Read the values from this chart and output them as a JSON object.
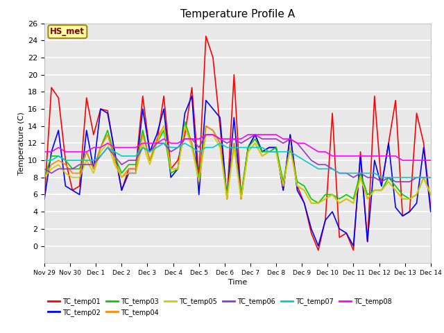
{
  "title": "Temperature Profile A",
  "xlabel": "Time",
  "ylabel": "Temperature (C)",
  "annotation": "HS_met",
  "ylim": [
    -2,
    26
  ],
  "yticks": [
    0,
    2,
    4,
    6,
    8,
    10,
    12,
    14,
    16,
    18,
    20,
    22,
    24,
    26
  ],
  "xtick_labels": [
    "Nov 29",
    "Nov 30",
    "Dec 1",
    "Dec 2",
    "Dec 3",
    "Dec 4",
    "Dec 5",
    "Dec 6",
    "Dec 7",
    "Dec 8",
    "Dec 9",
    "Dec 10",
    "Dec 11",
    "Dec 12",
    "Dec 13",
    "Dec 14"
  ],
  "background_color": "#e8e8e8",
  "fig_background": "#ffffff",
  "colors": {
    "TC_temp01": "#ff0000",
    "TC_temp02": "#0000ff",
    "TC_temp03": "#00cc00",
    "TC_temp04": "#ff8800",
    "TC_temp05": "#cccc00",
    "TC_temp06": "#9933cc",
    "TC_temp07": "#00cccc",
    "TC_temp08": "#ff00ff"
  },
  "series": {
    "TC_temp01": [
      5.5,
      18.5,
      17.3,
      10.0,
      6.5,
      7.0,
      17.3,
      13.0,
      16.0,
      15.8,
      11.0,
      6.5,
      9.0,
      9.0,
      17.5,
      11.0,
      12.0,
      17.5,
      9.0,
      10.0,
      13.0,
      18.5,
      8.0,
      24.5,
      22.0,
      14.0,
      5.5,
      20.0,
      5.5,
      11.5,
      13.0,
      11.0,
      11.5,
      11.5,
      6.5,
      13.0,
      7.0,
      5.0,
      1.5,
      -0.5,
      3.0,
      15.5,
      1.0,
      1.5,
      -0.5,
      11.0,
      0.5,
      17.5,
      7.0,
      12.0,
      17.0,
      3.5,
      4.0,
      15.5,
      12.0,
      4.5
    ],
    "TC_temp02": [
      5.5,
      11.0,
      13.5,
      7.0,
      6.5,
      6.0,
      13.5,
      9.0,
      16.0,
      15.5,
      11.0,
      6.5,
      8.5,
      8.5,
      16.0,
      11.0,
      13.0,
      16.0,
      8.0,
      9.0,
      15.5,
      17.5,
      6.0,
      17.0,
      16.0,
      15.0,
      5.5,
      15.0,
      5.5,
      11.5,
      13.0,
      11.0,
      11.5,
      11.5,
      6.5,
      13.0,
      6.5,
      5.0,
      2.0,
      0.0,
      3.0,
      4.0,
      2.0,
      1.5,
      0.0,
      10.5,
      0.5,
      10.0,
      7.0,
      12.0,
      4.5,
      3.5,
      4.0,
      5.0,
      11.5,
      4.0
    ],
    "TC_temp03": [
      8.0,
      10.5,
      10.5,
      10.0,
      9.0,
      9.0,
      11.0,
      9.0,
      11.5,
      13.5,
      10.5,
      8.5,
      9.5,
      9.5,
      13.5,
      10.0,
      12.0,
      13.5,
      8.5,
      9.0,
      14.5,
      12.0,
      8.0,
      14.0,
      13.5,
      12.0,
      6.0,
      12.0,
      6.0,
      11.5,
      12.5,
      11.0,
      11.0,
      11.5,
      7.5,
      11.5,
      7.5,
      7.0,
      5.5,
      5.0,
      6.0,
      6.0,
      5.5,
      6.0,
      5.5,
      8.5,
      6.0,
      6.5,
      6.5,
      8.0,
      7.0,
      6.0,
      5.5,
      6.0,
      8.0,
      6.0
    ],
    "TC_temp04": [
      8.0,
      9.5,
      10.0,
      9.5,
      8.5,
      8.5,
      11.0,
      9.0,
      11.5,
      13.0,
      10.0,
      8.0,
      9.0,
      9.0,
      13.0,
      10.0,
      12.5,
      14.0,
      9.0,
      9.0,
      14.0,
      12.0,
      7.5,
      14.0,
      13.5,
      12.0,
      5.5,
      12.0,
      5.5,
      11.0,
      12.0,
      10.5,
      11.0,
      11.0,
      7.0,
      11.5,
      7.0,
      6.5,
      5.0,
      5.0,
      5.5,
      6.0,
      5.0,
      5.5,
      5.0,
      8.0,
      5.5,
      6.5,
      6.5,
      7.5,
      6.5,
      5.5,
      5.5,
      6.0,
      8.0,
      6.0
    ],
    "TC_temp05": [
      8.0,
      9.0,
      9.5,
      8.5,
      8.0,
      8.0,
      10.0,
      8.5,
      11.0,
      12.0,
      9.5,
      8.0,
      8.5,
      8.5,
      12.0,
      9.5,
      12.0,
      14.0,
      9.0,
      9.0,
      14.0,
      11.5,
      7.5,
      13.0,
      13.0,
      11.5,
      5.5,
      11.5,
      5.5,
      11.0,
      12.0,
      10.5,
      11.0,
      11.0,
      7.0,
      11.5,
      7.0,
      6.5,
      5.0,
      5.0,
      5.5,
      6.0,
      5.0,
      5.5,
      5.0,
      8.0,
      5.5,
      6.5,
      6.5,
      7.5,
      6.5,
      5.5,
      5.5,
      6.0,
      8.0,
      6.0
    ],
    "TC_temp06": [
      9.0,
      8.5,
      9.0,
      9.0,
      9.0,
      9.5,
      9.5,
      9.5,
      10.5,
      11.5,
      10.5,
      9.5,
      10.0,
      10.0,
      11.5,
      11.0,
      12.0,
      12.0,
      11.0,
      11.5,
      12.5,
      12.5,
      11.5,
      13.0,
      13.0,
      12.5,
      12.0,
      12.5,
      12.0,
      12.5,
      13.0,
      12.5,
      12.5,
      12.5,
      12.0,
      12.5,
      12.0,
      11.0,
      10.0,
      9.5,
      9.5,
      9.0,
      8.5,
      8.5,
      8.0,
      8.5,
      8.0,
      8.0,
      7.5,
      8.0,
      7.5,
      7.5,
      7.5,
      8.0,
      8.0,
      8.0
    ],
    "TC_temp07": [
      10.0,
      10.0,
      10.5,
      10.0,
      10.0,
      10.0,
      10.0,
      10.0,
      10.5,
      11.5,
      11.0,
      10.5,
      10.5,
      10.5,
      11.5,
      11.0,
      11.5,
      12.0,
      11.5,
      11.5,
      12.0,
      11.5,
      11.0,
      11.5,
      11.5,
      12.0,
      11.5,
      11.5,
      11.5,
      11.5,
      11.5,
      11.5,
      11.0,
      11.0,
      11.0,
      11.0,
      10.5,
      10.0,
      9.5,
      9.0,
      9.0,
      9.0,
      8.5,
      8.5,
      8.5,
      8.5,
      8.5,
      8.5,
      8.0,
      8.0,
      8.0,
      8.0,
      8.0,
      8.0,
      8.0,
      8.0
    ],
    "TC_temp08": [
      11.0,
      11.0,
      11.5,
      11.0,
      11.0,
      11.0,
      11.0,
      11.5,
      11.5,
      12.0,
      11.5,
      11.5,
      11.5,
      11.5,
      12.0,
      12.0,
      12.0,
      12.5,
      12.0,
      12.0,
      12.5,
      12.5,
      12.5,
      13.0,
      13.0,
      12.5,
      12.5,
      12.5,
      12.5,
      13.0,
      13.0,
      13.0,
      13.0,
      13.0,
      12.5,
      12.5,
      12.0,
      12.0,
      11.5,
      11.0,
      11.0,
      10.5,
      10.5,
      10.5,
      10.5,
      10.5,
      10.5,
      10.5,
      10.5,
      10.5,
      10.5,
      10.0,
      10.0,
      10.0,
      10.0,
      10.0
    ]
  }
}
